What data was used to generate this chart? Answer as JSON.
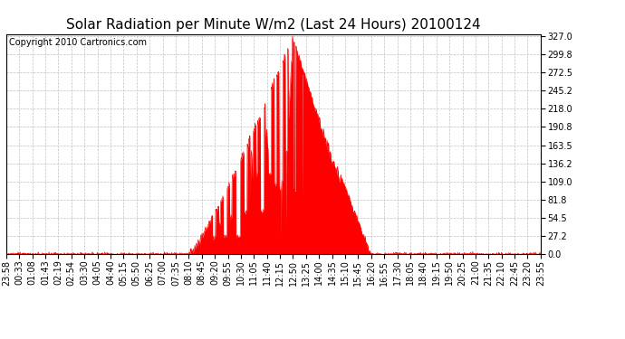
{
  "title": "Solar Radiation per Minute W/m2 (Last 24 Hours) 20100124",
  "copyright": "Copyright 2010 Cartronics.com",
  "fill_color": "#FF0000",
  "line_color": "#FF0000",
  "background_color": "#FFFFFF",
  "grid_color": "#C0C0C0",
  "dashed_line_color": "#FF0000",
  "yticks": [
    0.0,
    27.2,
    54.5,
    81.8,
    109.0,
    136.2,
    163.5,
    190.8,
    218.0,
    245.2,
    272.5,
    299.8,
    327.0
  ],
  "ymax": 327.0,
  "ymin": 0.0,
  "num_points": 1440,
  "title_fontsize": 11,
  "copyright_fontsize": 7,
  "tick_fontsize": 7,
  "xtick_labels": [
    "23:58",
    "00:33",
    "01:08",
    "01:43",
    "02:19",
    "02:54",
    "03:30",
    "04:05",
    "04:40",
    "05:15",
    "05:50",
    "06:25",
    "07:00",
    "07:35",
    "08:10",
    "08:45",
    "09:20",
    "09:55",
    "10:30",
    "11:05",
    "11:40",
    "12:15",
    "12:50",
    "13:25",
    "14:00",
    "14:35",
    "15:10",
    "15:45",
    "16:20",
    "16:55",
    "17:30",
    "18:05",
    "18:40",
    "19:15",
    "19:50",
    "20:25",
    "21:00",
    "21:35",
    "22:10",
    "22:45",
    "23:20",
    "23:55"
  ]
}
